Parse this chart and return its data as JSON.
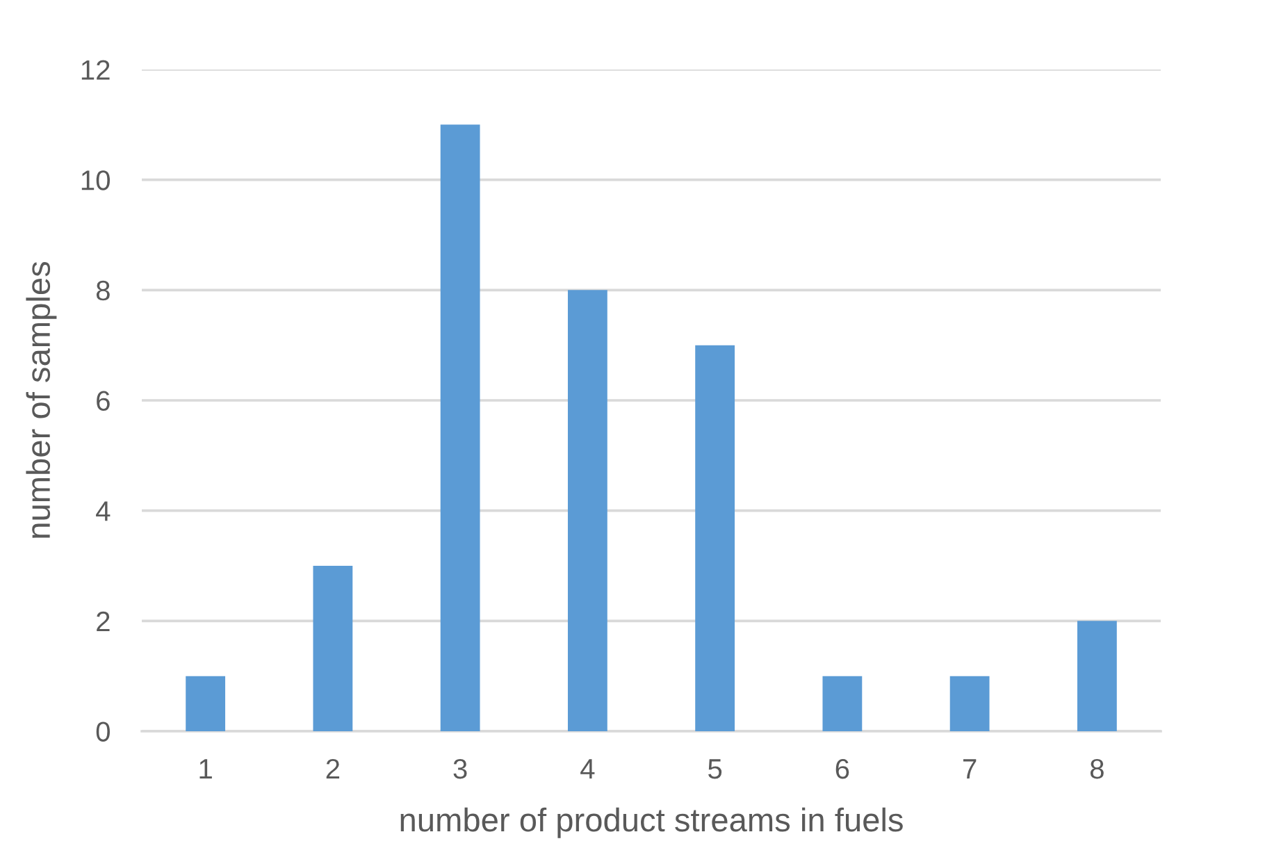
{
  "chart_data": {
    "type": "bar",
    "categories": [
      "1",
      "2",
      "3",
      "4",
      "5",
      "6",
      "7",
      "8"
    ],
    "values": [
      1,
      3,
      11,
      8,
      7,
      1,
      1,
      2
    ],
    "color": "#5b9bd5",
    "xlabel": "number of product streams in fuels",
    "ylabel": "number of samples",
    "ylim": [
      0,
      12
    ],
    "yticks": [
      0,
      2,
      4,
      6,
      8,
      10,
      12
    ],
    "grid": "y",
    "legend": false
  }
}
